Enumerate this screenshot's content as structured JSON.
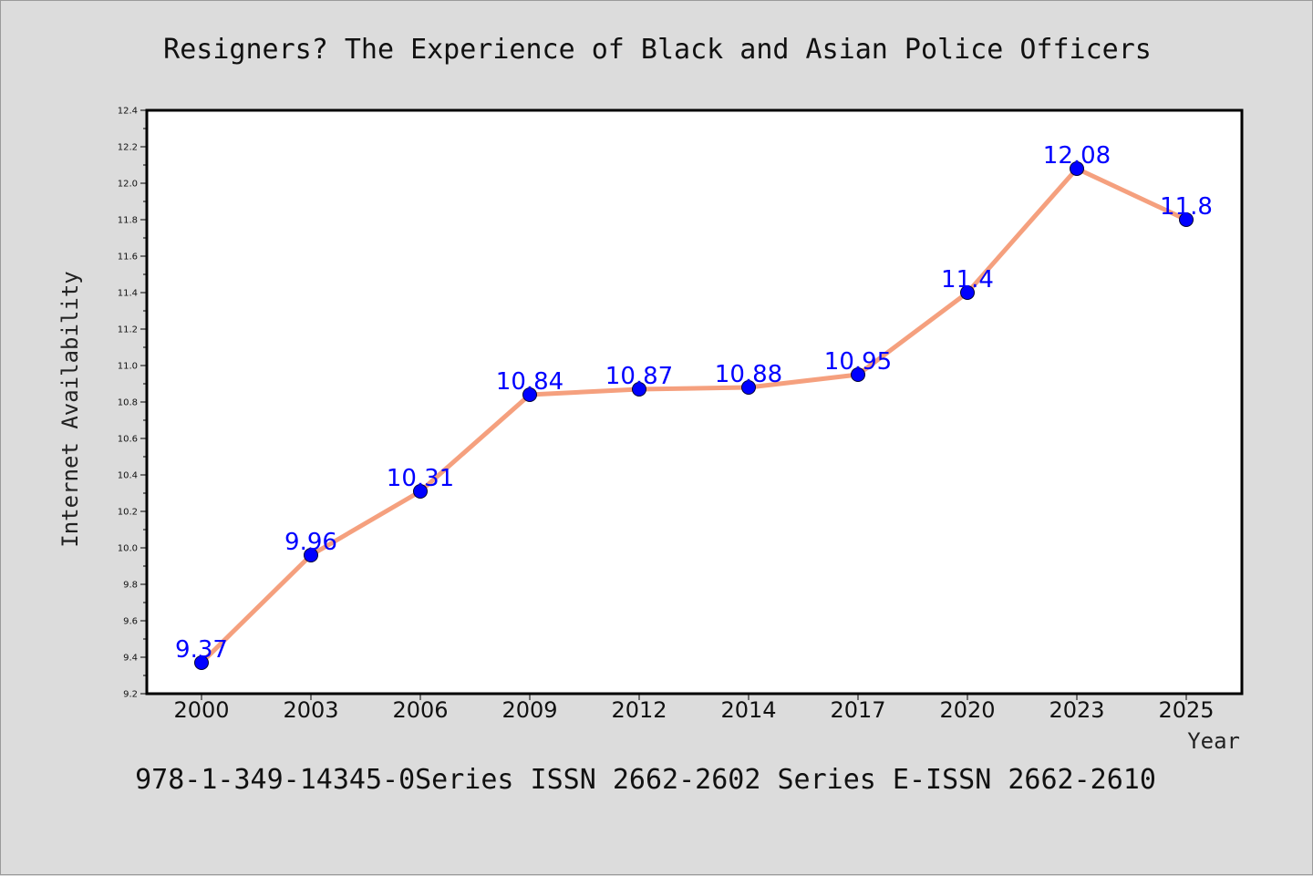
{
  "chart_data": {
    "type": "line",
    "title": "Resigners? The Experience of Black and Asian Police Officers",
    "xlabel": "Year",
    "ylabel": "Internet Availability",
    "footer": "978-1-349-14345-0Series ISSN 2662-2602 Series E-ISSN 2662-2610",
    "categories": [
      "2000",
      "2003",
      "2006",
      "2009",
      "2012",
      "2014",
      "2017",
      "2020",
      "2023",
      "2025"
    ],
    "series": [
      {
        "values": [
          9.37,
          9.96,
          10.31,
          10.84,
          10.87,
          10.88,
          10.95,
          11.4,
          12.08,
          11.8
        ],
        "data_labels": [
          "9.37",
          "9.96",
          "10.31",
          "10.84",
          "10.87",
          "10.88",
          "10.95",
          "11.4",
          "12.08",
          "11.8"
        ]
      }
    ],
    "ylim": [
      9.2,
      12.4
    ],
    "yticks": [
      "9.2",
      "9.4",
      "9.6",
      "9.8",
      "10.0",
      "10.2",
      "10.4",
      "10.6",
      "10.8",
      "11.0",
      "11.2",
      "11.4",
      "11.6",
      "11.8",
      "12.0",
      "12.2",
      "12.4"
    ],
    "grid": false,
    "colors": {
      "line": "#f5a07e",
      "marker": "#0000ff",
      "data_label": "#0000ff",
      "plot_background": "#ffffff",
      "figure_background": "#dcdcdc"
    }
  }
}
